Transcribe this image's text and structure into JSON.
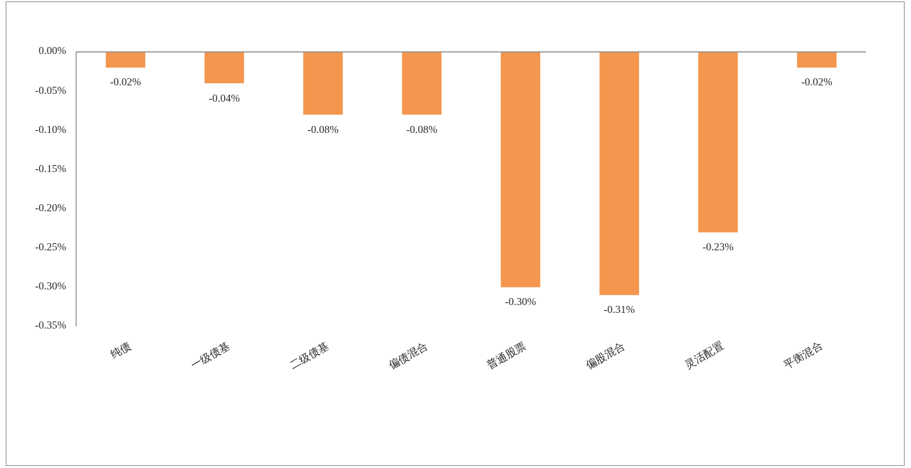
{
  "chart_data": {
    "type": "bar",
    "categories": [
      "纯债",
      "一级债基",
      "二级债基",
      "偏债混合",
      "普通股票",
      "偏股混合",
      "灵活配置",
      "平衡混合"
    ],
    "values": [
      -0.02,
      -0.04,
      -0.08,
      -0.08,
      -0.3,
      -0.31,
      -0.23,
      -0.02
    ],
    "value_labels": [
      "-0.02%",
      "-0.04%",
      "-0.08%",
      "-0.08%",
      "-0.30%",
      "-0.31%",
      "-0.23%",
      "-0.02%"
    ],
    "color": "#f4964e",
    "ylim": [
      -0.35,
      0
    ],
    "yticks": [
      {
        "value": 0,
        "label": "0.00%"
      },
      {
        "value": -0.05,
        "label": "-0.05%"
      },
      {
        "value": -0.1,
        "label": "-0.10%"
      },
      {
        "value": -0.15,
        "label": "-0.15%"
      },
      {
        "value": -0.2,
        "label": "-0.20%"
      },
      {
        "value": -0.25,
        "label": "-0.25%"
      },
      {
        "value": -0.3,
        "label": "-0.30%"
      },
      {
        "value": -0.35,
        "label": "-0.35%"
      }
    ]
  }
}
